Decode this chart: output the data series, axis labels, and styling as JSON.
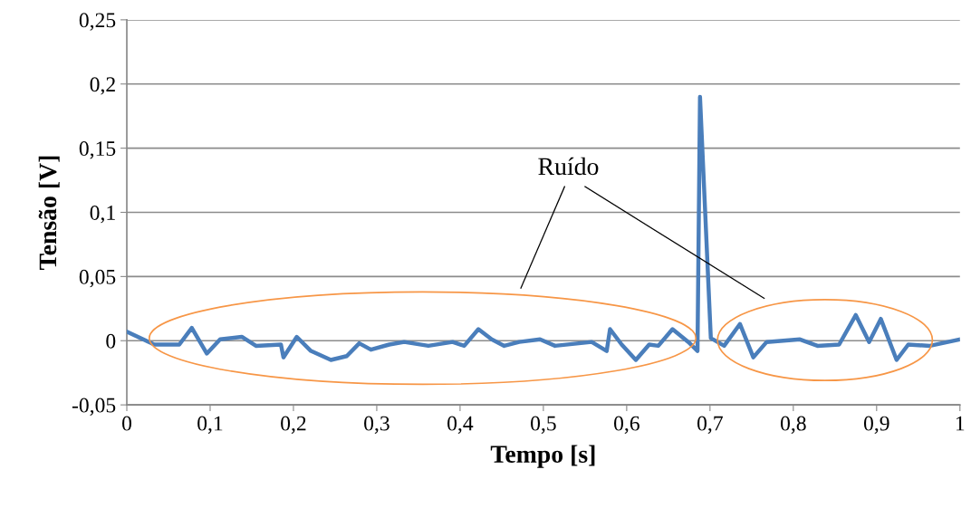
{
  "chart_data": {
    "type": "line",
    "xlabel": "Tempo [s]",
    "ylabel": "Tensão [V]",
    "annotations": [
      "Ruído"
    ],
    "series": [
      {
        "color": "#4a7ebb",
        "x": [
          0,
          0.033,
          0.063,
          0.078,
          0.096,
          0.112,
          0.138,
          0.155,
          0.185,
          0.188,
          0.204,
          0.221,
          0.245,
          0.264,
          0.279,
          0.293,
          0.315,
          0.333,
          0.362,
          0.391,
          0.405,
          0.422,
          0.438,
          0.453,
          0.471,
          0.496,
          0.514,
          0.558,
          0.576,
          0.58,
          0.594,
          0.611,
          0.627,
          0.638,
          0.655,
          0.674,
          0.685,
          0.688,
          0.701,
          0.717,
          0.736,
          0.752,
          0.768,
          0.808,
          0.829,
          0.855,
          0.875,
          0.891,
          0.905,
          0.924,
          0.938,
          0.964,
          1.0
        ],
        "values": [
          0.007,
          -0.003,
          -0.003,
          0.01,
          -0.01,
          0.001,
          0.003,
          -0.004,
          -0.003,
          -0.013,
          0.003,
          -0.008,
          -0.015,
          -0.012,
          -0.002,
          -0.007,
          -0.003,
          -0.001,
          -0.004,
          -0.001,
          -0.004,
          0.009,
          0.001,
          -0.004,
          -0.001,
          0.001,
          -0.004,
          -0.001,
          -0.008,
          0.009,
          -0.003,
          -0.015,
          -0.003,
          -0.004,
          0.009,
          -0.001,
          -0.008,
          0.19,
          0.002,
          -0.004,
          0.013,
          -0.013,
          -0.001,
          0.001,
          -0.004,
          -0.003,
          0.02,
          -0.001,
          0.017,
          -0.015,
          -0.003,
          -0.004,
          0.001
        ]
      }
    ],
    "xlim": [
      0,
      1
    ],
    "ylim": [
      -0.05,
      0.25
    ],
    "xticks": [
      0,
      {
        "value": 0.1,
        "label": "0,1"
      },
      {
        "value": 0.2,
        "label": "0,2"
      },
      {
        "value": 0.3,
        "label": "0,3"
      },
      {
        "value": 0.4,
        "label": "0,4"
      },
      {
        "value": 0.5,
        "label": "0,5"
      },
      {
        "value": 0.6,
        "label": "0,6"
      },
      {
        "value": 0.7,
        "label": "0,7"
      },
      {
        "value": 0.8,
        "label": "0,8"
      },
      {
        "value": 0.9,
        "label": "0,9"
      },
      1
    ],
    "yticks": [
      {
        "value": -0.05,
        "label": "-0,05"
      },
      0,
      {
        "value": 0.05,
        "label": "0,05"
      },
      {
        "value": 0.1,
        "label": "0,1"
      },
      {
        "value": 0.15,
        "label": "0,15"
      },
      {
        "value": 0.2,
        "label": "0,2"
      },
      {
        "value": 0.25,
        "label": "0,25"
      }
    ],
    "grid": "y",
    "legend": false,
    "marker": "none",
    "line_style": "solid"
  }
}
